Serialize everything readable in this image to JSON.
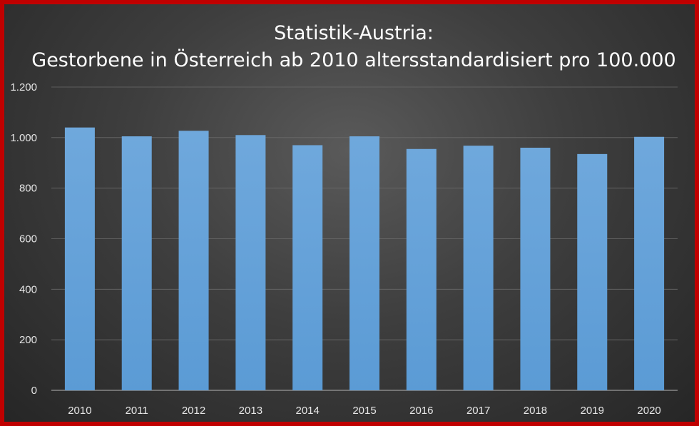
{
  "chart_data": {
    "type": "bar",
    "title_line1": "Statistik-Austria:",
    "title_line2": "Gestorbene in Österreich ab 2010 altersstandardisiert pro 100.000",
    "categories": [
      "2010",
      "2011",
      "2012",
      "2013",
      "2014",
      "2015",
      "2016",
      "2017",
      "2018",
      "2019",
      "2020"
    ],
    "values": [
      1040,
      1005,
      1027,
      1010,
      970,
      1005,
      955,
      968,
      960,
      935,
      1003
    ],
    "ylim": [
      0,
      1200
    ],
    "yticks": [
      0,
      200,
      400,
      600,
      800,
      1000,
      1200
    ],
    "ytick_labels": [
      "0",
      "200",
      "400",
      "600",
      "800",
      "1.000",
      "1.200"
    ],
    "grid": true,
    "colors": {
      "bar": "#5b9bd5",
      "background": "#3e3e3e",
      "border": "#c00000"
    }
  }
}
